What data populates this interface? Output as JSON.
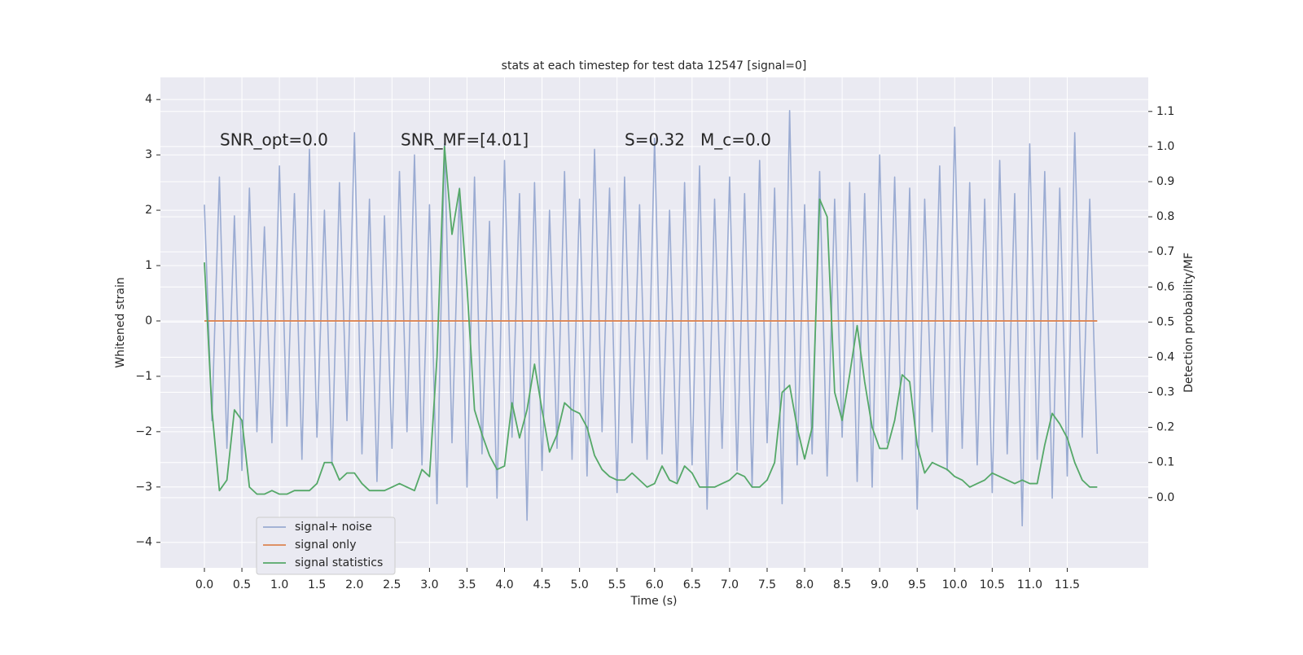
{
  "chart_data": {
    "type": "line",
    "title": "stats at each timestep for test data 12547 [signal=0]",
    "xlabel": "Time (s)",
    "ylabel": "Whitened strain",
    "y2label": "Detection probability/MF",
    "annotations": [
      "SNR_opt=0.0",
      "SNR_MF=[4.01]",
      "S=0.32",
      "M_c=0.0"
    ],
    "x": [
      0,
      0.1,
      0.2,
      0.3,
      0.4,
      0.5,
      0.6,
      0.7,
      0.8,
      0.9,
      1,
      1.1,
      1.2,
      1.3,
      1.4,
      1.5,
      1.6,
      1.7,
      1.8,
      1.9,
      2,
      2.1,
      2.2,
      2.3,
      2.4,
      2.5,
      2.6,
      2.7,
      2.8,
      2.9,
      3,
      3.1,
      3.2,
      3.3,
      3.4,
      3.5,
      3.6,
      3.7,
      3.8,
      3.9,
      4,
      4.1,
      4.2,
      4.3,
      4.4,
      4.5,
      4.6,
      4.7,
      4.8,
      4.9,
      5,
      5.1,
      5.2,
      5.3,
      5.4,
      5.5,
      5.6,
      5.7,
      5.8,
      5.9,
      6,
      6.1,
      6.2,
      6.3,
      6.4,
      6.5,
      6.6,
      6.7,
      6.8,
      6.9,
      7,
      7.1,
      7.2,
      7.3,
      7.4,
      7.5,
      7.6,
      7.7,
      7.8,
      7.9,
      8,
      8.1,
      8.2,
      8.3,
      8.4,
      8.5,
      8.6,
      8.7,
      8.8,
      8.9,
      9,
      9.1,
      9.2,
      9.3,
      9.4,
      9.5,
      9.6,
      9.7,
      9.8,
      9.9,
      10,
      10.1,
      10.2,
      10.3,
      10.4,
      10.5,
      10.6,
      10.7,
      10.8,
      10.9,
      11,
      11.1,
      11.2,
      11.3,
      11.4,
      11.5,
      11.6,
      11.7,
      11.8,
      11.9
    ],
    "series": [
      {
        "name": "signal+ noise",
        "color": "#9aabd2",
        "axis": "y",
        "values": [
          2.1,
          -1.8,
          2.6,
          -2.3,
          1.9,
          -2.7,
          2.4,
          -2.0,
          1.7,
          -2.2,
          2.8,
          -1.9,
          2.3,
          -2.5,
          3.1,
          -2.1,
          2.0,
          -2.6,
          2.5,
          -1.8,
          3.4,
          -2.4,
          2.2,
          -2.9,
          1.9,
          -2.3,
          2.7,
          -2.0,
          3.0,
          -2.6,
          2.1,
          -3.3,
          3.2,
          -2.2,
          2.4,
          -3.0,
          2.6,
          -2.4,
          1.8,
          -3.2,
          2.9,
          -2.1,
          2.3,
          -3.6,
          2.5,
          -2.7,
          2.0,
          -2.3,
          2.7,
          -2.5,
          2.2,
          -2.8,
          3.1,
          -2.0,
          2.4,
          -3.1,
          2.6,
          -2.2,
          2.1,
          -2.5,
          3.3,
          -2.4,
          2.0,
          -2.9,
          2.5,
          -2.6,
          2.8,
          -3.4,
          2.2,
          -2.3,
          2.6,
          -2.7,
          2.3,
          -3.0,
          2.9,
          -2.2,
          2.4,
          -3.3,
          3.8,
          -2.6,
          2.1,
          -2.4,
          2.7,
          -2.8,
          2.2,
          -2.1,
          2.5,
          -2.9,
          2.3,
          -3.0,
          3.0,
          -2.2,
          2.6,
          -2.5,
          2.4,
          -3.4,
          2.2,
          -2.0,
          2.8,
          -2.7,
          3.5,
          -2.3,
          2.5,
          -2.6,
          2.2,
          -3.1,
          2.9,
          -2.4,
          2.3,
          -3.7,
          3.2,
          -2.5,
          2.7,
          -3.2,
          2.4,
          -2.8,
          3.4,
          -2.1,
          2.2,
          -2.4
        ]
      },
      {
        "name": "signal only",
        "color": "#dd8452",
        "axis": "y",
        "values": [
          0,
          0,
          0,
          0,
          0,
          0,
          0,
          0,
          0,
          0,
          0,
          0,
          0,
          0,
          0,
          0,
          0,
          0,
          0,
          0,
          0,
          0,
          0,
          0,
          0,
          0,
          0,
          0,
          0,
          0,
          0,
          0,
          0,
          0,
          0,
          0,
          0,
          0,
          0,
          0,
          0,
          0,
          0,
          0,
          0,
          0,
          0,
          0,
          0,
          0,
          0,
          0,
          0,
          0,
          0,
          0,
          0,
          0,
          0,
          0,
          0,
          0,
          0,
          0,
          0,
          0,
          0,
          0,
          0,
          0,
          0,
          0,
          0,
          0,
          0,
          0,
          0,
          0,
          0,
          0,
          0,
          0,
          0,
          0,
          0,
          0,
          0,
          0,
          0,
          0,
          0,
          0,
          0,
          0,
          0,
          0,
          0,
          0,
          0,
          0,
          0,
          0,
          0,
          0,
          0,
          0,
          0,
          0,
          0,
          0,
          0,
          0,
          0,
          0,
          0,
          0,
          0,
          0,
          0,
          0
        ]
      },
      {
        "name": "signal statistics",
        "color": "#55a868",
        "axis": "y2",
        "values": [
          0.67,
          0.25,
          0.02,
          0.05,
          0.25,
          0.22,
          0.03,
          0.01,
          0.01,
          0.02,
          0.01,
          0.01,
          0.02,
          0.02,
          0.02,
          0.04,
          0.1,
          0.1,
          0.05,
          0.07,
          0.07,
          0.04,
          0.02,
          0.02,
          0.02,
          0.03,
          0.04,
          0.03,
          0.02,
          0.08,
          0.06,
          0.4,
          1.0,
          0.75,
          0.88,
          0.6,
          0.25,
          0.18,
          0.12,
          0.08,
          0.09,
          0.27,
          0.17,
          0.25,
          0.38,
          0.25,
          0.13,
          0.18,
          0.27,
          0.25,
          0.24,
          0.2,
          0.12,
          0.08,
          0.06,
          0.05,
          0.05,
          0.07,
          0.05,
          0.03,
          0.04,
          0.09,
          0.05,
          0.04,
          0.09,
          0.07,
          0.03,
          0.03,
          0.03,
          0.04,
          0.05,
          0.07,
          0.06,
          0.03,
          0.03,
          0.05,
          0.1,
          0.3,
          0.32,
          0.2,
          0.11,
          0.2,
          0.85,
          0.8,
          0.3,
          0.22,
          0.35,
          0.49,
          0.33,
          0.2,
          0.14,
          0.14,
          0.22,
          0.35,
          0.33,
          0.15,
          0.07,
          0.1,
          0.09,
          0.08,
          0.06,
          0.05,
          0.03,
          0.04,
          0.05,
          0.07,
          0.06,
          0.05,
          0.04,
          0.05,
          0.04,
          0.04,
          0.15,
          0.24,
          0.21,
          0.17,
          0.1,
          0.05,
          0.03,
          0.03
        ]
      }
    ],
    "xlim": [
      -0.586,
      12.58
    ],
    "xticks": [
      {
        "value": 0,
        "label": "0.0"
      },
      0.5,
      {
        "value": 1,
        "label": "1.0"
      },
      1.5,
      {
        "value": 2,
        "label": "2.0"
      },
      2.5,
      {
        "value": 3,
        "label": "3.0"
      },
      3.5,
      {
        "value": 4,
        "label": "4.0"
      },
      4.5,
      {
        "value": 5,
        "label": "5.0"
      },
      5.5,
      {
        "value": 6,
        "label": "6.0"
      },
      6.5,
      {
        "value": 7,
        "label": "7.0"
      },
      7.5,
      {
        "value": 8,
        "label": "8.0"
      },
      8.5,
      {
        "value": 9,
        "label": "9.0"
      },
      9.5,
      {
        "value": 10,
        "label": "10.0"
      },
      10.5,
      {
        "value": 11,
        "label": "11.0"
      },
      11.5
    ],
    "ylim": [
      -4.46,
      4.4
    ],
    "yticks": [
      {
        "value": -4,
        "label": "−4"
      },
      {
        "value": -3,
        "label": "−3"
      },
      {
        "value": -2,
        "label": "−2"
      },
      {
        "value": -1,
        "label": "−1"
      },
      0,
      1,
      2,
      3,
      4
    ],
    "y2lim": [
      -0.2,
      1.197
    ],
    "y2ticks": [
      {
        "value": 0,
        "label": "0.0"
      },
      0.1,
      0.2,
      0.3,
      0.4,
      0.5,
      0.6,
      0.7,
      0.8,
      0.9,
      {
        "value": 1,
        "label": "1.0"
      },
      1.1
    ],
    "grid": true,
    "legend": "lower left"
  }
}
